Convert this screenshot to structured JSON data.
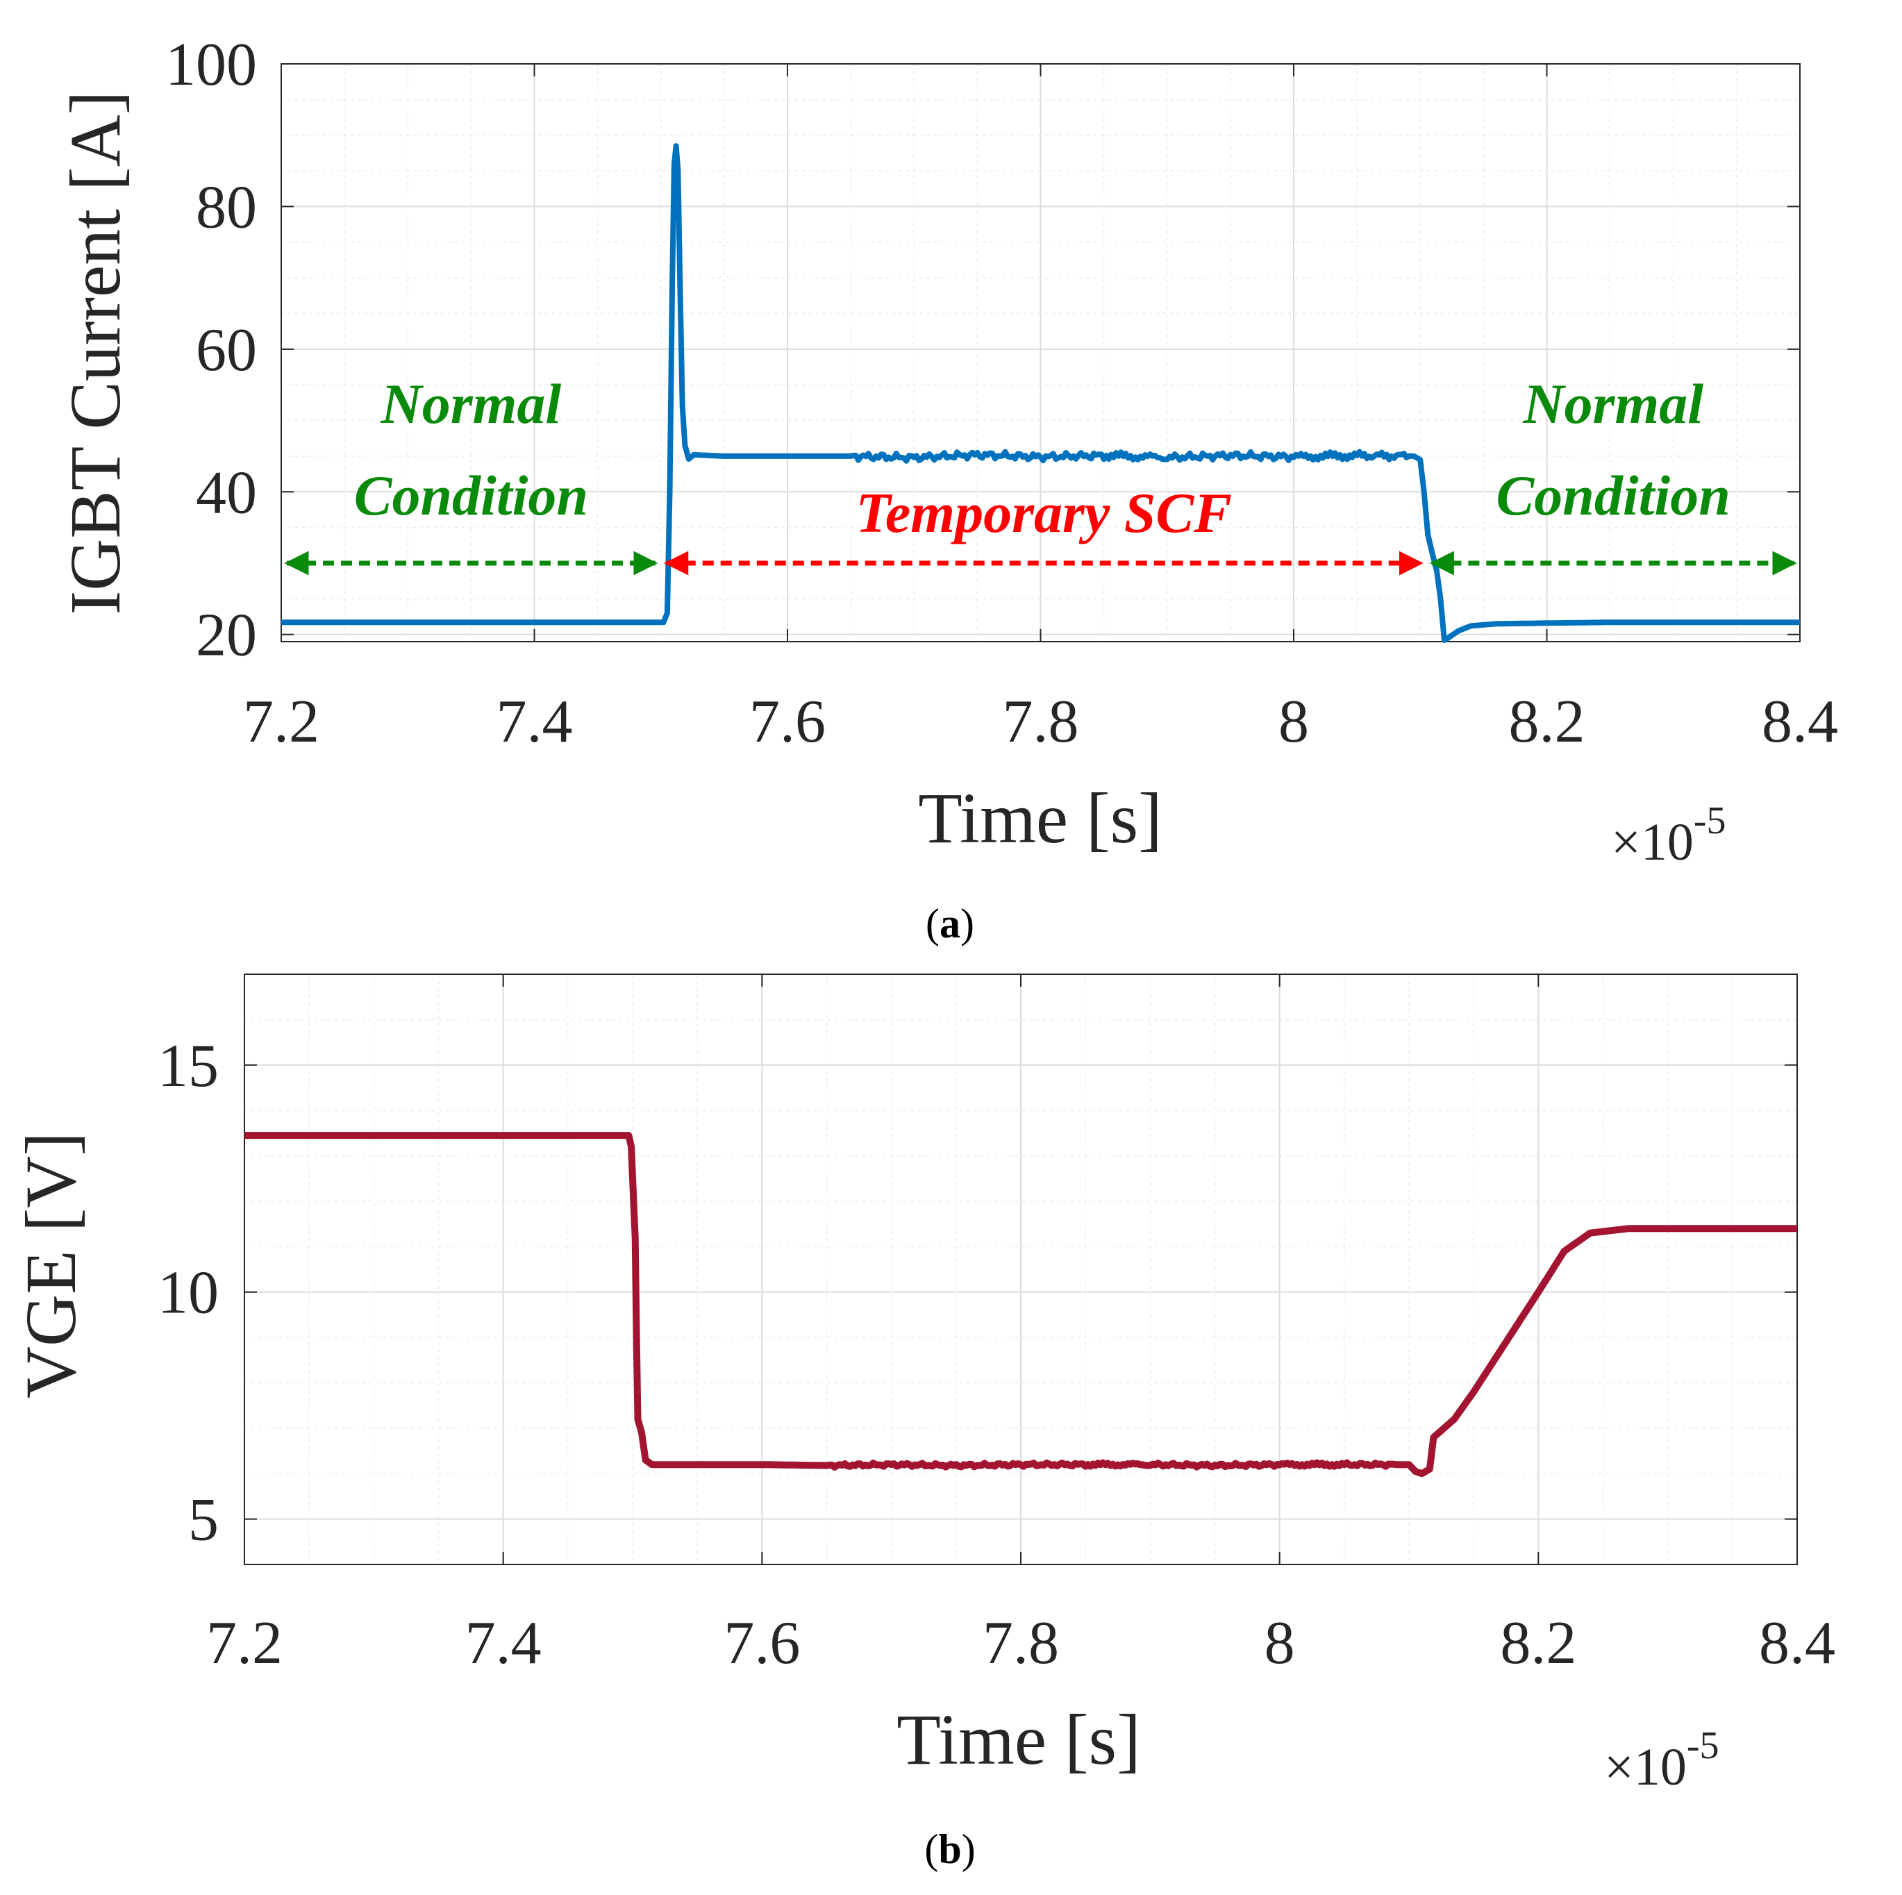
{
  "chart_data": [
    {
      "type": "line",
      "panel": "a",
      "caption_letter": "a",
      "xlabel": "Time [s]",
      "ylabel": "IGBT Current [A]",
      "x_multiplier": "×10",
      "x_multiplier_exp": "-5",
      "xlim": [
        7.2,
        8.4
      ],
      "ylim": [
        19,
        100
      ],
      "xticks": [
        7.2,
        7.4,
        7.6,
        7.8,
        8.0,
        8.2,
        8.4
      ],
      "xtick_labels": [
        "7.2",
        "7.4",
        "7.6",
        "7.8",
        "8",
        "8.2",
        "8.4"
      ],
      "yticks": [
        20,
        40,
        60,
        80,
        100
      ],
      "ytick_labels": [
        "20",
        "40",
        "60",
        "80",
        "100"
      ],
      "grid": true,
      "series": [
        {
          "name": "IGBT Current",
          "color": "#0072BD",
          "points": [
            [
              7.2,
              21.7
            ],
            [
              7.502,
              21.7
            ],
            [
              7.505,
              23
            ],
            [
              7.507,
              40
            ],
            [
              7.509,
              70
            ],
            [
              7.5105,
              86
            ],
            [
              7.512,
              88.5
            ],
            [
              7.5135,
              85
            ],
            [
              7.515,
              70
            ],
            [
              7.517,
              52
            ],
            [
              7.519,
              46.5
            ],
            [
              7.522,
              44.6
            ],
            [
              7.526,
              45.2
            ],
            [
              7.55,
              45.0
            ],
            [
              7.6,
              45.0
            ],
            [
              7.65,
              45.0
            ],
            [
              7.7,
              44.8
            ],
            [
              7.75,
              45.2
            ],
            [
              7.8,
              44.9
            ],
            [
              7.85,
              45.1
            ],
            [
              7.9,
              44.8
            ],
            [
              7.95,
              45.1
            ],
            [
              8.0,
              44.9
            ],
            [
              8.05,
              45.1
            ],
            [
              8.095,
              45.0
            ],
            [
              8.1,
              44.5
            ],
            [
              8.103,
              40
            ],
            [
              8.106,
              34
            ],
            [
              8.11,
              31
            ],
            [
              8.113,
              29
            ],
            [
              8.116,
              25
            ],
            [
              8.119,
              19.2
            ],
            [
              8.122,
              19.5
            ],
            [
              8.13,
              20.5
            ],
            [
              8.14,
              21.2
            ],
            [
              8.16,
              21.5
            ],
            [
              8.2,
              21.6
            ],
            [
              8.25,
              21.7
            ],
            [
              8.4,
              21.7
            ]
          ]
        }
      ],
      "annotations": [
        {
          "id": "normal-left",
          "lines": [
            "Normal",
            "Condition"
          ],
          "color": "#0A8A0A",
          "x_range": [
            7.2,
            7.5
          ]
        },
        {
          "id": "scf",
          "lines": [
            "Temporary SCF"
          ],
          "color": "#FF0000",
          "x_range": [
            7.5,
            8.105
          ]
        },
        {
          "id": "normal-right",
          "lines": [
            "Normal",
            "Condition"
          ],
          "color": "#0A8A0A",
          "x_range": [
            8.105,
            8.4
          ]
        }
      ],
      "arrow_level": 30
    },
    {
      "type": "line",
      "panel": "b",
      "caption_letter": "b",
      "xlabel": "Time [s]",
      "ylabel": "VGE [V]",
      "x_multiplier": "×10",
      "x_multiplier_exp": "-5",
      "xlim": [
        7.2,
        8.4
      ],
      "ylim": [
        4,
        17
      ],
      "xticks": [
        7.2,
        7.4,
        7.6,
        7.8,
        8.0,
        8.2,
        8.4
      ],
      "xtick_labels": [
        "7.2",
        "7.4",
        "7.6",
        "7.8",
        "8",
        "8.2",
        "8.4"
      ],
      "yticks": [
        5,
        10,
        15
      ],
      "ytick_labels": [
        "5",
        "10",
        "15"
      ],
      "grid": true,
      "series": [
        {
          "name": "VGE",
          "color": "#A2142F",
          "points": [
            [
              7.2,
              13.45
            ],
            [
              7.497,
              13.45
            ],
            [
              7.499,
              13.2
            ],
            [
              7.5,
              12.5
            ],
            [
              7.502,
              11.2
            ],
            [
              7.503,
              9.0
            ],
            [
              7.504,
              7.2
            ],
            [
              7.507,
              6.9
            ],
            [
              7.51,
              6.3
            ],
            [
              7.515,
              6.2
            ],
            [
              7.55,
              6.2
            ],
            [
              7.6,
              6.2
            ],
            [
              7.65,
              6.18
            ],
            [
              7.7,
              6.2
            ],
            [
              7.75,
              6.18
            ],
            [
              7.8,
              6.2
            ],
            [
              7.85,
              6.2
            ],
            [
              7.9,
              6.2
            ],
            [
              7.95,
              6.18
            ],
            [
              8.0,
              6.2
            ],
            [
              8.05,
              6.2
            ],
            [
              8.1,
              6.2
            ],
            [
              8.105,
              6.05
            ],
            [
              8.11,
              6.0
            ],
            [
              8.116,
              6.1
            ],
            [
              8.119,
              6.8
            ],
            [
              8.125,
              6.95
            ],
            [
              8.135,
              7.2
            ],
            [
              8.15,
              7.8
            ],
            [
              8.175,
              8.9
            ],
            [
              8.2,
              10.0
            ],
            [
              8.22,
              10.9
            ],
            [
              8.24,
              11.3
            ],
            [
              8.27,
              11.4
            ],
            [
              8.4,
              11.4
            ]
          ]
        }
      ]
    }
  ]
}
